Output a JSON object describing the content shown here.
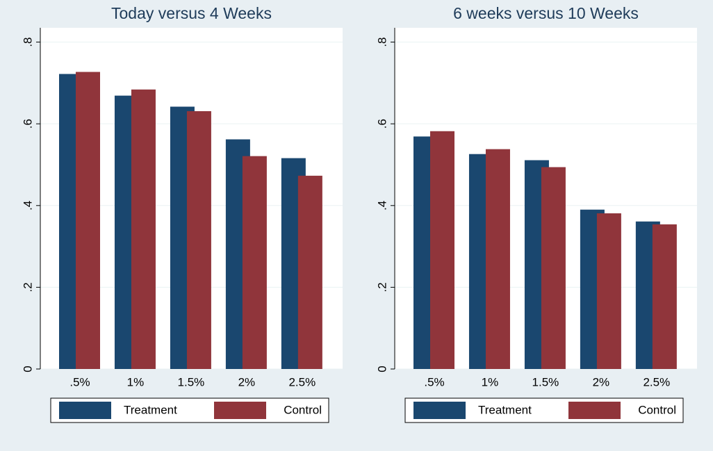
{
  "chart_data": [
    {
      "type": "bar",
      "title": "Today versus 4 Weeks",
      "categories": [
        ".5%",
        "1%",
        "1.5%",
        "2%",
        "2.5%"
      ],
      "series": [
        {
          "name": "Treatment",
          "color": "#1a476f",
          "values": [
            0.722,
            0.669,
            0.642,
            0.562,
            0.516
          ]
        },
        {
          "name": "Control",
          "color": "#90353b",
          "values": [
            0.727,
            0.684,
            0.631,
            0.521,
            0.473
          ]
        }
      ],
      "ylim": [
        0,
        0.835
      ],
      "yticks": [
        0,
        {
          "value": 0.2,
          "label": ".2"
        },
        {
          "value": 0.4,
          "label": ".4"
        },
        {
          "value": 0.6,
          "label": ".6"
        },
        {
          "value": 0.8,
          "label": ".8"
        }
      ],
      "grid": true,
      "legend": "bottom"
    },
    {
      "type": "bar",
      "title": "6 weeks versus 10 Weeks",
      "categories": [
        ".5%",
        "1%",
        "1.5%",
        "2%",
        "2.5%"
      ],
      "series": [
        {
          "name": "Treatment",
          "color": "#1a476f",
          "values": [
            0.569,
            0.526,
            0.511,
            0.39,
            0.361
          ]
        },
        {
          "name": "Control",
          "color": "#90353b",
          "values": [
            0.582,
            0.538,
            0.494,
            0.381,
            0.354
          ]
        }
      ],
      "ylim": [
        0,
        0.835
      ],
      "yticks": [
        0,
        {
          "value": 0.2,
          "label": ".2"
        },
        {
          "value": 0.4,
          "label": ".4"
        },
        {
          "value": 0.6,
          "label": ".6"
        },
        {
          "value": 0.8,
          "label": ".8"
        }
      ],
      "grid": true,
      "legend": "bottom"
    }
  ]
}
